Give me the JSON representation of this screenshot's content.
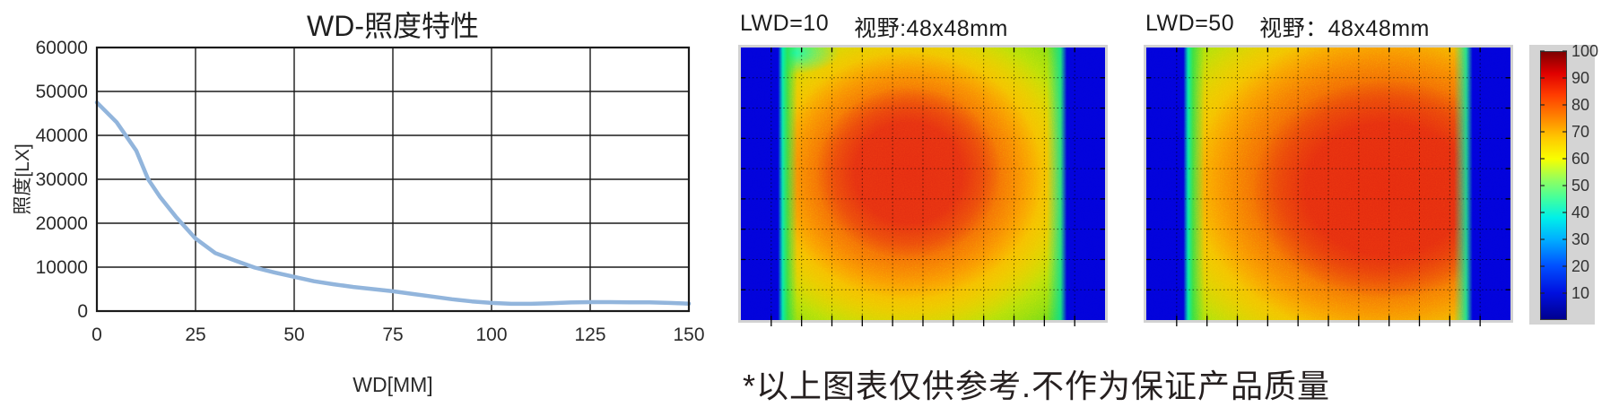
{
  "note": "*以上图表仅供参考.不作为保证产品质量",
  "chart_data": [
    {
      "type": "line",
      "title": "WD-照度特性",
      "xlabel": "WD[MM]",
      "ylabel": "照度[LX]",
      "xlim": [
        0,
        150
      ],
      "ylim": [
        0,
        60000
      ],
      "xticks": [
        0,
        25,
        50,
        75,
        100,
        125,
        150
      ],
      "yticks": [
        0,
        10000,
        20000,
        30000,
        40000,
        50000,
        60000
      ],
      "grid": true,
      "legend": "none",
      "line_color": "#92b5dc",
      "x": [
        0,
        5,
        10,
        13,
        16,
        20,
        25,
        30,
        35,
        40,
        45,
        50,
        55,
        60,
        65,
        70,
        75,
        80,
        85,
        90,
        95,
        100,
        105,
        110,
        115,
        120,
        125,
        130,
        135,
        140,
        145,
        150
      ],
      "y": [
        47500,
        43000,
        36500,
        30000,
        26000,
        21500,
        16500,
        13200,
        11500,
        9900,
        8800,
        7800,
        6800,
        6100,
        5500,
        5000,
        4500,
        3900,
        3300,
        2700,
        2200,
        1850,
        1650,
        1650,
        1800,
        1950,
        2050,
        2050,
        2000,
        2000,
        1850,
        1700
      ]
    },
    {
      "type": "heatmap",
      "label": "LWD=10",
      "fov": "视野:48x48mm",
      "value_range": [
        0,
        100
      ],
      "grid_cols": 12,
      "grid_rows": 9,
      "pattern": "hot spot (~95) centered slightly left of middle, falling to ~45-50 green near field edges; deep blue (~5) vertical bands at left and right edges about 10% wide; cyan patch at top-left inner corner"
    },
    {
      "type": "heatmap",
      "label": "LWD=50",
      "fov": "视野：48x48mm",
      "value_range": [
        0,
        100
      ],
      "grid_cols": 12,
      "grid_rows": 9,
      "pattern": "hot spot (~95) shifted right of centre, red region extending almost to right inner edge with sharp falloff; green (~50) toward left inner edge; deep blue (~5) vertical bands at left and right edges about 10% wide"
    },
    {
      "type": "colorbar",
      "range": [
        0,
        100
      ],
      "ticks": [
        10,
        20,
        30,
        40,
        50,
        60,
        70,
        80,
        90,
        100
      ],
      "jet_stops": [
        [
          0,
          "#00008f"
        ],
        [
          10,
          "#0010e0"
        ],
        [
          20,
          "#0050ff"
        ],
        [
          30,
          "#00b0ff"
        ],
        [
          38,
          "#00f0e8"
        ],
        [
          45,
          "#40ffa0"
        ],
        [
          52,
          "#90ff60"
        ],
        [
          60,
          "#f8ff00"
        ],
        [
          68,
          "#ffc800"
        ],
        [
          76,
          "#ff8000"
        ],
        [
          84,
          "#ff3c00"
        ],
        [
          92,
          "#e00000"
        ],
        [
          100,
          "#7f0000"
        ]
      ]
    }
  ],
  "colors": {
    "line": "#92b5dc",
    "axis": "#1a1a1a",
    "heat_blue_band": "#0202dd",
    "heat_green_base": "#2ecc2e",
    "heat_red_core": "#e62e12",
    "colorbar_panel_bg": "#d4d4d4",
    "text": "#1c1c1c"
  }
}
